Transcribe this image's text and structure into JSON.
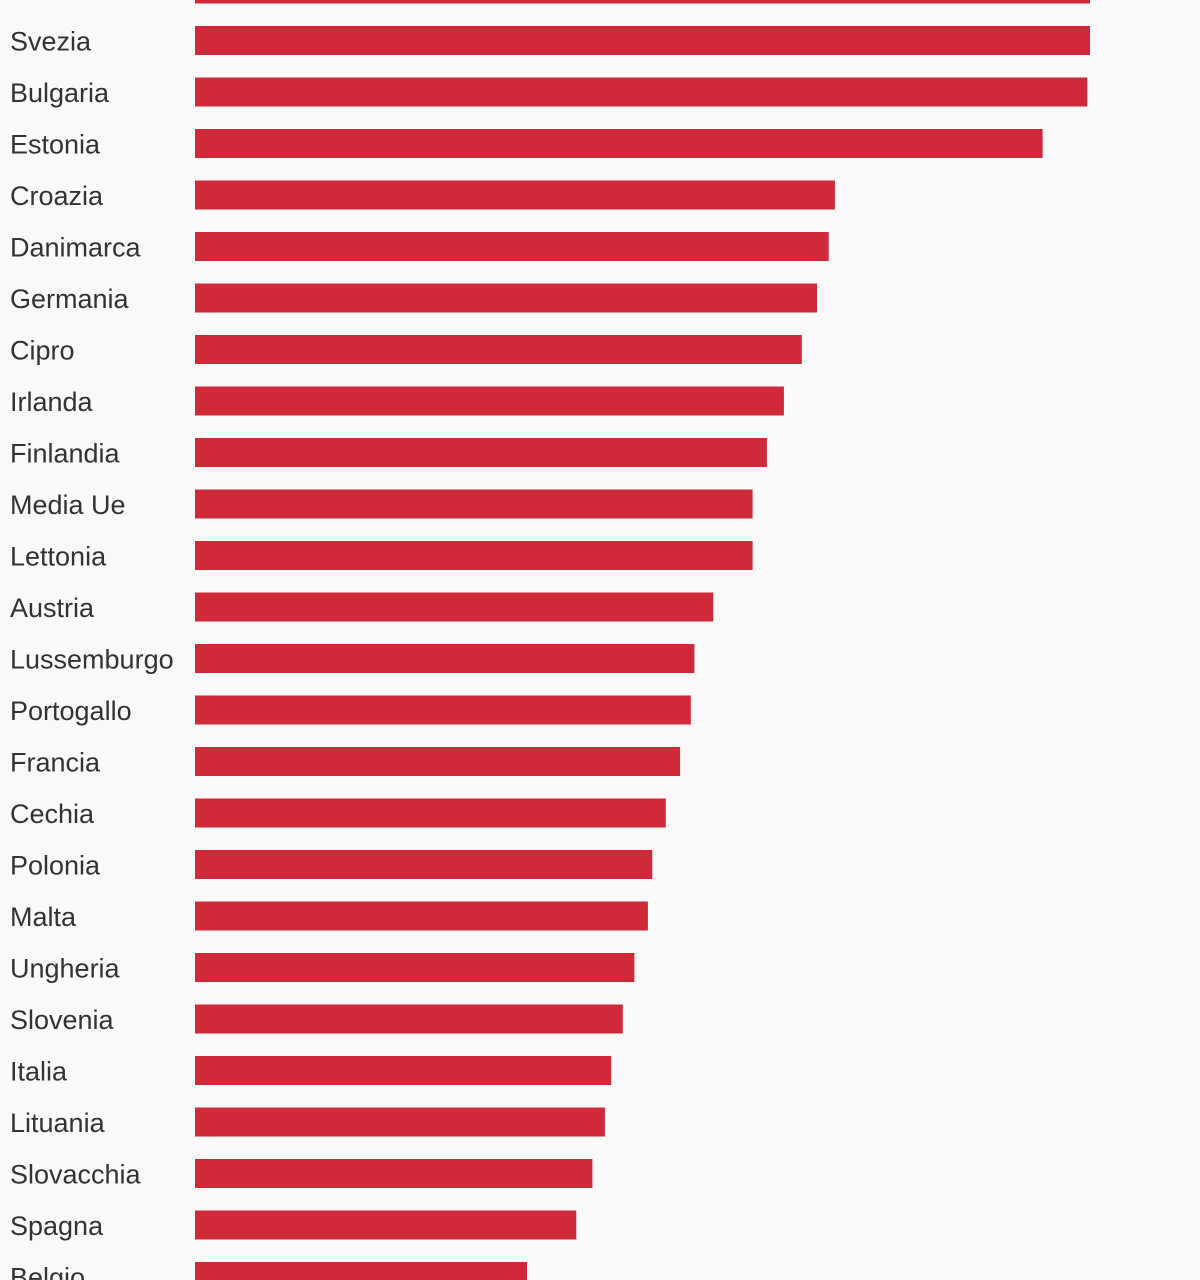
{
  "chart_data": {
    "type": "bar",
    "orientation": "horizontal",
    "categories": [
      "",
      "Svezia",
      "Bulgaria",
      "Estonia",
      "Croazia",
      "Danimarca",
      "Germania",
      "Cipro",
      "Irlanda",
      "Finlandia",
      "Media Ue",
      "Lettonia",
      "Austria",
      "Lussemburgo",
      "Portogallo",
      "Francia",
      "Cechia",
      "Polonia",
      "Malta",
      "Ungheria",
      "Slovenia",
      "Italia",
      "Lituania",
      "Slovacchia",
      "Spagna",
      "Belgio"
    ],
    "values": [
      100,
      100,
      99.7,
      94.7,
      71.5,
      70.8,
      69.5,
      67.8,
      65.8,
      63.9,
      62.3,
      62.3,
      57.9,
      55.8,
      55.4,
      54.2,
      52.6,
      51.1,
      50.6,
      49.1,
      47.8,
      46.5,
      45.8,
      44.4,
      42.6,
      37.1
    ],
    "title": "",
    "xlabel": "",
    "ylabel": "",
    "xlim": [
      0,
      100
    ],
    "grid": false,
    "legend": "none",
    "bar_color": "#d0293a",
    "label_color": "#333333",
    "background": "#f9f9f9"
  }
}
